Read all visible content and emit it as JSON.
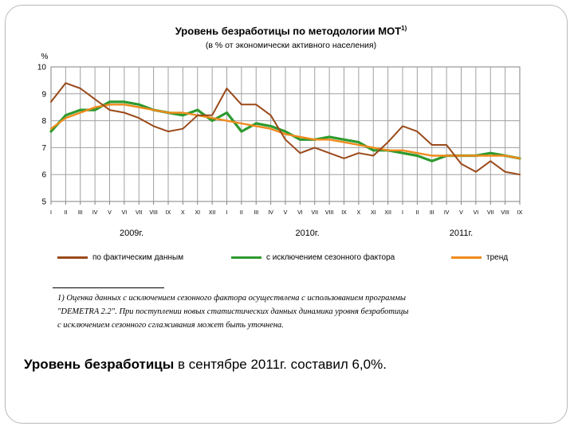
{
  "chart_data": {
    "type": "line",
    "title": "Уровень безработицы по методологии МОТ",
    "title_sup": "1)",
    "subtitle": "(в % от экономически активного населения)",
    "ylabel": "%",
    "ylim": [
      5,
      10
    ],
    "yticks": [
      5,
      6,
      7,
      8,
      9,
      10
    ],
    "grid": true,
    "categories": [
      "I",
      "II",
      "III",
      "IV",
      "V",
      "VI",
      "VII",
      "VIII",
      "IX",
      "X",
      "XI",
      "XII",
      "I",
      "II",
      "III",
      "IV",
      "V",
      "VI",
      "VII",
      "VIII",
      "IX",
      "X",
      "XI",
      "XII",
      "I",
      "II",
      "III",
      "IV",
      "V",
      "VI",
      "VII",
      "VIII",
      "IX"
    ],
    "year_labels": [
      {
        "label": "2009г.",
        "start_index": 0,
        "end_index": 11
      },
      {
        "label": "2010г.",
        "start_index": 12,
        "end_index": 23
      },
      {
        "label": "2011г.",
        "start_index": 24,
        "end_index": 32
      }
    ],
    "series": [
      {
        "name": "по фактическим данным",
        "color": "#9a4a1a",
        "values": [
          8.7,
          9.4,
          9.2,
          8.8,
          8.4,
          8.3,
          8.1,
          7.8,
          7.6,
          7.7,
          8.2,
          8.2,
          9.2,
          8.6,
          8.6,
          8.2,
          7.3,
          6.8,
          7.0,
          6.8,
          6.6,
          6.8,
          6.7,
          7.2,
          7.8,
          7.6,
          7.1,
          7.1,
          6.4,
          6.1,
          6.5,
          6.1,
          6.0
        ]
      },
      {
        "name": "с исключением сезонного фактора",
        "color": "#2e9a2e",
        "values": [
          7.6,
          8.2,
          8.4,
          8.4,
          8.7,
          8.7,
          8.6,
          8.4,
          8.3,
          8.2,
          8.4,
          8.0,
          8.3,
          7.6,
          7.9,
          7.8,
          7.6,
          7.3,
          7.3,
          7.4,
          7.3,
          7.2,
          6.9,
          6.9,
          6.8,
          6.7,
          6.5,
          6.7,
          6.7,
          6.7,
          6.8,
          6.7,
          6.6
        ]
      },
      {
        "name": "тренд",
        "color": "#f08a1c",
        "values": [
          7.7,
          8.1,
          8.3,
          8.5,
          8.6,
          8.6,
          8.5,
          8.4,
          8.3,
          8.3,
          8.2,
          8.1,
          8.0,
          7.9,
          7.8,
          7.7,
          7.5,
          7.4,
          7.3,
          7.3,
          7.2,
          7.1,
          7.0,
          6.9,
          6.9,
          6.8,
          6.7,
          6.7,
          6.7,
          6.7,
          6.7,
          6.7,
          6.6
        ]
      }
    ]
  },
  "footnote": {
    "lines": [
      "1) Оценка данных с исключением сезонного фактора осуществлена с использованием программы",
      "\"DEMETRA 2.2\". При поступлении новых статистических данных динамика уровня безработицы",
      "с исключением сезонного сглаживания может быть уточнена."
    ]
  },
  "caption": {
    "bold": "Уровень безработицы",
    "rest": " в сентябре 2011г. составил 6,0%."
  }
}
